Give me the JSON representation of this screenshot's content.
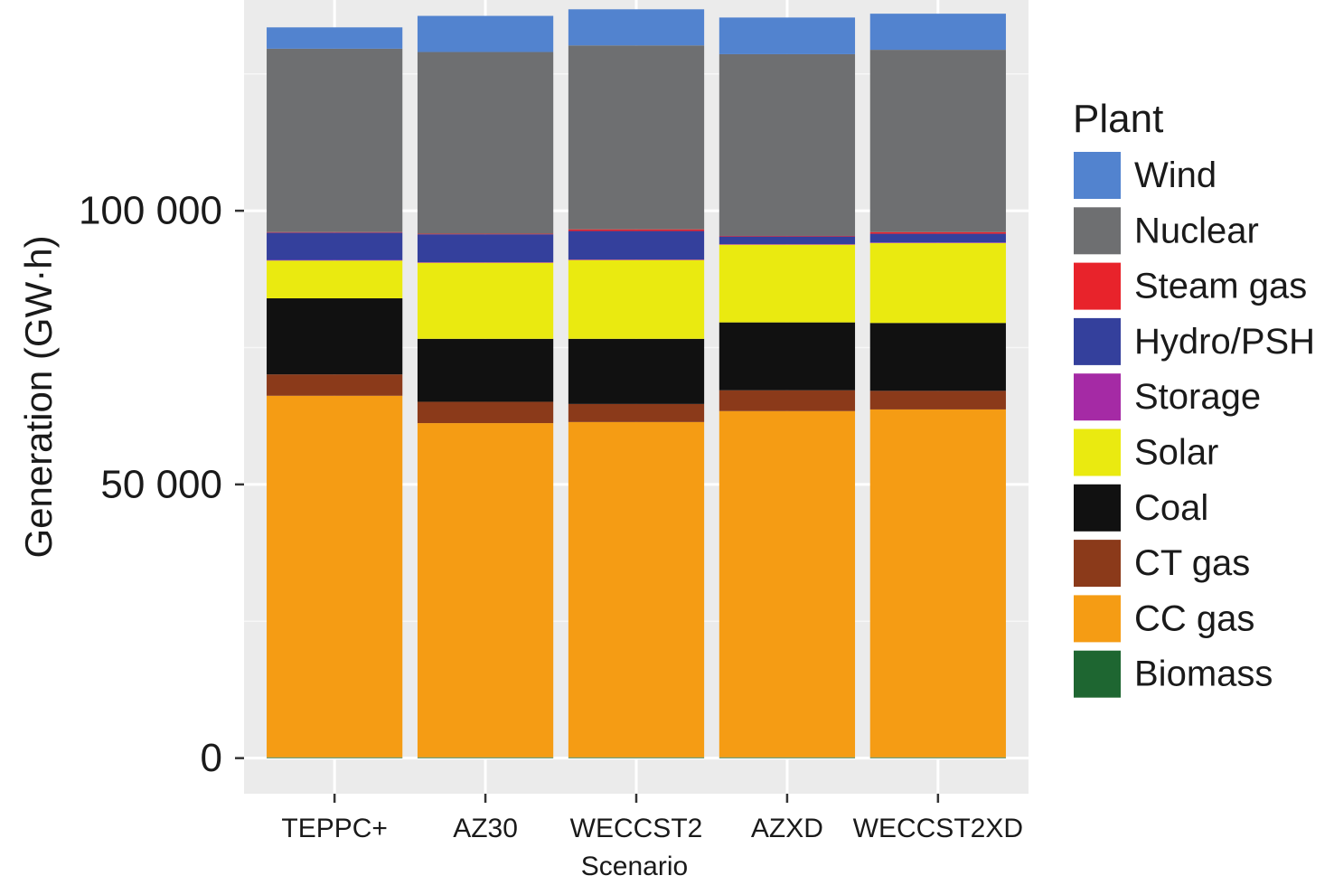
{
  "chart_data": {
    "type": "bar",
    "stacked": true,
    "xlabel": "Scenario",
    "ylabel": "Generation (GW·h)",
    "ylim": [
      -6500,
      138500
    ],
    "grid": true,
    "legend_position": "right",
    "legend_title": "Plant",
    "y_ticks": [
      {
        "value": 0,
        "label": "0"
      },
      {
        "value": 50000,
        "label": "50 000"
      },
      {
        "value": 100000,
        "label": "100 000"
      }
    ],
    "categories": [
      "TEPPC+",
      "AZ30",
      "WECCST2",
      "AZXD",
      "WECCST2XD"
    ],
    "series": [
      {
        "name": "Biomass",
        "color": "#1e6631",
        "values": [
          150,
          150,
          150,
          150,
          150
        ]
      },
      {
        "name": "CC gas",
        "color": "#f59c14",
        "values": [
          66050,
          61050,
          61250,
          63250,
          63550
        ]
      },
      {
        "name": "CT gas",
        "color": "#8b3a1a",
        "values": [
          3900,
          3900,
          3300,
          3800,
          3400
        ]
      },
      {
        "name": "Coal",
        "color": "#111111",
        "values": [
          13900,
          11500,
          11900,
          12400,
          12400
        ]
      },
      {
        "name": "Solar",
        "color": "#eaea10",
        "values": [
          6900,
          13900,
          14400,
          14200,
          14600
        ]
      },
      {
        "name": "Storage",
        "color": "#a52aa5",
        "values": [
          100,
          100,
          100,
          100,
          100
        ]
      },
      {
        "name": "Hydro/PSH",
        "color": "#34409c",
        "values": [
          5000,
          5100,
          5200,
          1400,
          1600
        ]
      },
      {
        "name": "Steam gas",
        "color": "#e8232b",
        "values": [
          100,
          100,
          300,
          100,
          300
        ]
      },
      {
        "name": "Nuclear",
        "color": "#6e6f71",
        "values": [
          33500,
          33200,
          33600,
          33200,
          33300
        ]
      },
      {
        "name": "Wind",
        "color": "#5283cf",
        "values": [
          3900,
          6600,
          6600,
          6700,
          6600
        ]
      }
    ]
  }
}
